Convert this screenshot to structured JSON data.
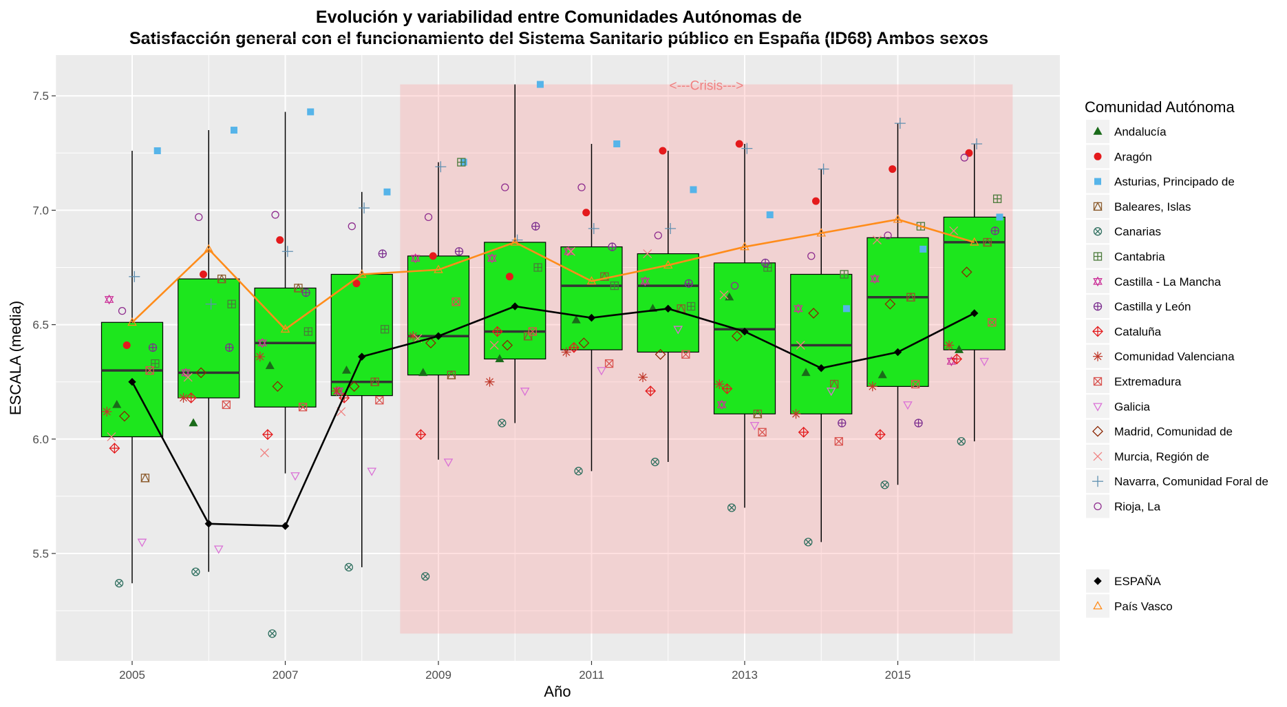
{
  "chart_data": {
    "type": "boxplot",
    "title_line1": "Evolución y variabilidad entre Comunidades Autónomas de",
    "title_line2": "Satisfacción general con el funcionamiento del Sistema Sanitario público en España (ID68) Ambos sexos",
    "xlabel": "Año",
    "ylabel": "ESCALA (media)",
    "ylim": [
      5.0,
      7.75
    ],
    "xlim": [
      2004.0,
      2017.0
    ],
    "x_ticks": [
      2005,
      2007,
      2009,
      2011,
      2013,
      2015
    ],
    "x_tick_labels": [
      "2005",
      "2007",
      "2009",
      "2011",
      "2013",
      "2015"
    ],
    "y_ticks": [
      5.5,
      6.0,
      6.5,
      7.0,
      7.5
    ],
    "y_tick_labels": [
      "5.5",
      "6.0",
      "6.5",
      "7.0",
      "7.5"
    ],
    "grid": true,
    "crisis": {
      "label": "<---Crisis--->",
      "x_start": 2008.5,
      "x_end": 2016.5,
      "y_start": 5.15,
      "y_end": 7.55,
      "color": "#ff9999"
    },
    "box_color": "#1de61d",
    "boxes": [
      {
        "year": 2005,
        "min": 5.37,
        "q1": 6.01,
        "median": 6.3,
        "q3": 6.51,
        "max": 7.26
      },
      {
        "year": 2006,
        "min": 5.42,
        "q1": 6.18,
        "median": 6.29,
        "q3": 6.7,
        "max": 7.35
      },
      {
        "year": 2007,
        "min": 5.85,
        "q1": 6.14,
        "median": 6.42,
        "q3": 6.66,
        "max": 7.43
      },
      {
        "year": 2008,
        "min": 5.44,
        "q1": 6.19,
        "median": 6.25,
        "q3": 6.72,
        "max": 7.08
      },
      {
        "year": 2009,
        "min": 5.91,
        "q1": 6.28,
        "median": 6.45,
        "q3": 6.8,
        "max": 7.21
      },
      {
        "year": 2010,
        "min": 6.07,
        "q1": 6.35,
        "median": 6.47,
        "q3": 6.86,
        "max": 7.55
      },
      {
        "year": 2011,
        "min": 5.86,
        "q1": 6.39,
        "median": 6.67,
        "q3": 6.84,
        "max": 7.29
      },
      {
        "year": 2012,
        "min": 5.9,
        "q1": 6.38,
        "median": 6.67,
        "q3": 6.81,
        "max": 7.26
      },
      {
        "year": 2013,
        "min": 5.7,
        "q1": 6.11,
        "median": 6.48,
        "q3": 6.77,
        "max": 7.29
      },
      {
        "year": 2014,
        "min": 5.55,
        "q1": 6.11,
        "median": 6.41,
        "q3": 6.72,
        "max": 7.18
      },
      {
        "year": 2015,
        "min": 5.8,
        "q1": 6.23,
        "median": 6.62,
        "q3": 6.88,
        "max": 7.38
      },
      {
        "year": 2016,
        "min": 5.99,
        "q1": 6.39,
        "median": 6.86,
        "q3": 6.97,
        "max": 7.29
      }
    ],
    "legend_title": "Comunidad Autónoma",
    "legend_position": "right",
    "x_jitter_per_region": [
      -0.2,
      -0.07,
      0.33,
      0.17,
      -0.17,
      0.3,
      -0.3,
      0.27,
      -0.23,
      -0.33,
      0.23,
      0.13,
      -0.1,
      -0.27,
      0.03,
      -0.13
    ],
    "regions": [
      {
        "name": "Andalucía",
        "shape": "triangle-filled",
        "color": "#1a6b1a",
        "values": [
          6.15,
          6.07,
          6.32,
          6.3,
          6.29,
          6.35,
          6.52,
          6.57,
          6.62,
          6.29,
          6.28,
          6.39
        ]
      },
      {
        "name": "Aragón",
        "shape": "circle-filled",
        "color": "#e41a1c",
        "values": [
          6.41,
          6.72,
          6.87,
          6.68,
          6.8,
          6.71,
          6.99,
          7.26,
          7.29,
          7.04,
          7.18,
          7.25
        ]
      },
      {
        "name": "Asturias, Principado de",
        "shape": "square-filled",
        "color": "#56b4e9",
        "values": [
          7.26,
          7.35,
          7.43,
          7.08,
          7.21,
          7.55,
          7.29,
          7.09,
          6.98,
          6.57,
          6.83,
          6.97
        ]
      },
      {
        "name": "Baleares, Islas",
        "shape": "square-triangle",
        "color": "#8b5a2b",
        "values": [
          5.83,
          6.7,
          6.66,
          6.25,
          6.28,
          6.45,
          6.71,
          6.57,
          6.11,
          6.24,
          6.62,
          6.86
        ]
      },
      {
        "name": "Canarias",
        "shape": "circle-x",
        "color": "#2f6f5f",
        "values": [
          5.37,
          5.42,
          5.15,
          5.44,
          5.4,
          6.07,
          5.86,
          5.9,
          5.7,
          5.55,
          5.8,
          5.99
        ]
      },
      {
        "name": "Cantabria",
        "shape": "square-plus",
        "color": "#4a7a3a",
        "values": [
          6.33,
          6.59,
          6.47,
          6.48,
          7.21,
          6.75,
          6.67,
          6.58,
          6.75,
          6.72,
          6.93,
          7.05
        ]
      },
      {
        "name": "Castilla - La Mancha",
        "shape": "star-of-david",
        "color": "#cc3399",
        "values": [
          6.61,
          6.29,
          6.42,
          6.21,
          6.79,
          6.79,
          6.82,
          6.69,
          6.15,
          6.57,
          6.7,
          6.34
        ]
      },
      {
        "name": "Castilla y León",
        "shape": "circle-plus",
        "color": "#7b2d8e",
        "values": [
          6.4,
          6.4,
          6.64,
          6.81,
          6.82,
          6.93,
          6.84,
          6.68,
          6.77,
          6.07,
          6.07,
          6.91
        ]
      },
      {
        "name": "Cataluña",
        "shape": "diamond-plus",
        "color": "#e41a1c",
        "values": [
          5.96,
          6.18,
          6.02,
          6.18,
          6.02,
          6.47,
          6.4,
          6.21,
          6.22,
          6.03,
          6.02,
          6.35
        ]
      },
      {
        "name": "Comunidad Valenciana",
        "shape": "asterisk",
        "color": "#c0392b",
        "values": [
          6.12,
          6.18,
          6.36,
          6.21,
          6.45,
          6.25,
          6.38,
          6.27,
          6.24,
          6.11,
          6.23,
          6.41
        ]
      },
      {
        "name": "Extremadura",
        "shape": "square-x",
        "color": "#d9534f",
        "values": [
          6.3,
          6.15,
          6.14,
          6.17,
          6.6,
          6.47,
          6.33,
          6.37,
          6.03,
          5.99,
          6.24,
          6.51
        ]
      },
      {
        "name": "Galicia",
        "shape": "triangle-down",
        "color": "#da70d6",
        "values": [
          5.55,
          5.52,
          5.84,
          5.86,
          5.9,
          6.21,
          6.3,
          6.48,
          6.06,
          6.21,
          6.15,
          6.34
        ]
      },
      {
        "name": "Madrid, Comunidad de",
        "shape": "diamond",
        "color": "#8b2500",
        "values": [
          6.1,
          6.29,
          6.23,
          6.23,
          6.42,
          6.41,
          6.42,
          6.37,
          6.45,
          6.55,
          6.59,
          6.73
        ]
      },
      {
        "name": "Murcia, Región de",
        "shape": "x",
        "color": "#f08080",
        "values": [
          6.01,
          6.27,
          5.94,
          6.12,
          6.44,
          6.41,
          6.82,
          6.81,
          6.63,
          6.41,
          6.87,
          6.91
        ]
      },
      {
        "name": "Navarra, Comunidad Foral de",
        "shape": "plus",
        "color": "#5f8fb0",
        "values": [
          6.71,
          6.59,
          6.82,
          7.01,
          7.19,
          6.87,
          6.92,
          6.92,
          7.27,
          7.18,
          7.38,
          7.29
        ]
      },
      {
        "name": "Rioja, La",
        "shape": "circle-open",
        "color": "#8e2c8e",
        "values": [
          6.56,
          6.97,
          6.98,
          6.93,
          6.97,
          7.1,
          7.1,
          6.89,
          6.67,
          6.8,
          6.89,
          7.23
        ]
      }
    ],
    "legend2": [
      {
        "name": "ESPAÑA",
        "shape": "diamond-filled",
        "color": "#000000"
      },
      {
        "name": "País Vasco",
        "shape": "triangle-open",
        "color": "#ff8c1a"
      }
    ],
    "lines": [
      {
        "name": "ESPAÑA",
        "color": "#000000",
        "values": [
          6.25,
          5.63,
          5.62,
          6.36,
          6.45,
          6.58,
          6.53,
          6.57,
          6.47,
          6.31,
          6.38,
          6.55
        ]
      },
      {
        "name": "País Vasco",
        "color": "#ff8c1a",
        "values": [
          6.51,
          6.83,
          6.48,
          6.72,
          6.74,
          6.86,
          6.69,
          6.76,
          6.84,
          6.9,
          6.96,
          6.86
        ]
      }
    ],
    "years": [
      2005,
      2006,
      2007,
      2008,
      2009,
      2010,
      2011,
      2012,
      2013,
      2014,
      2015,
      2016
    ]
  }
}
